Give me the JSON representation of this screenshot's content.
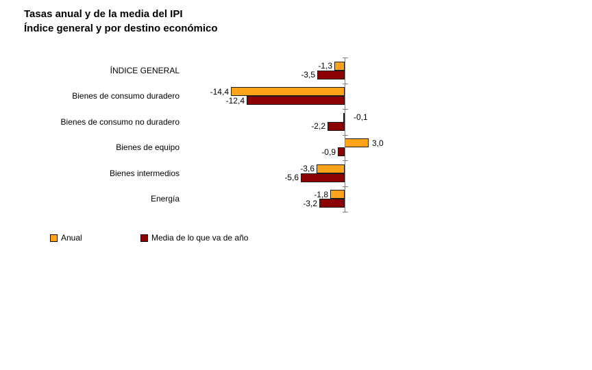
{
  "title": {
    "line1": "Tasas anual y de la media del IPI",
    "line2": "Índice general y por destino económico"
  },
  "chart_data": {
    "type": "bar",
    "orientation": "horizontal",
    "title": "Tasas anual y de la media del IPI",
    "subtitle": "Índice general y por destino económico",
    "categories": [
      "ÍNDICE GENERAL",
      "Bienes de consumo duradero",
      "Bienes de consumo no duradero",
      "Bienes de equipo",
      "Bienes intermedios",
      "Energía"
    ],
    "series": [
      {
        "name": "Anual",
        "color": "#FFA318",
        "values": [
          -1.3,
          -14.4,
          -0.1,
          3.0,
          -3.6,
          -1.8
        ]
      },
      {
        "name": "Media de lo que va de año",
        "color": "#8B0000",
        "values": [
          -3.5,
          -12.4,
          -2.2,
          -0.9,
          -5.6,
          -3.2
        ]
      }
    ],
    "decimal_separator": ",",
    "value_labels_shown": true,
    "xlim": [
      -16,
      4
    ],
    "grid": false,
    "legend_position": "bottom-left",
    "axis_color": "#7F7F7F",
    "bar_border_color": "#1A1A1A"
  }
}
